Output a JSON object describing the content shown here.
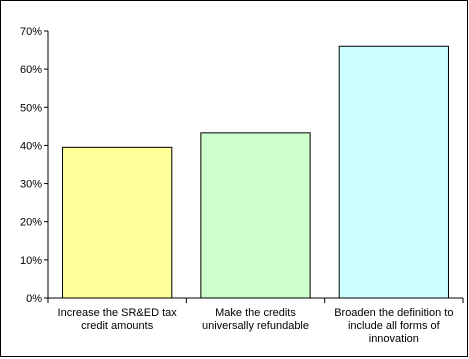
{
  "chart_data": {
    "type": "bar",
    "title": "",
    "xlabel": "",
    "ylabel": "",
    "categories": [
      [
        "Increase the SR&ED tax",
        "credit amounts"
      ],
      [
        "Make the credits",
        "universally refundable"
      ],
      [
        "Broaden the definition to",
        "include all forms of",
        "innovation"
      ]
    ],
    "values": [
      39.5,
      43.3,
      66.0
    ],
    "bar_colors": [
      "#ffff99",
      "#ccffcc",
      "#ccffff"
    ],
    "ylim": [
      0,
      70
    ],
    "y_ticks": [
      0,
      10,
      20,
      30,
      40,
      50,
      60,
      70
    ],
    "y_tick_labels": [
      "0%",
      "10%",
      "20%",
      "30%",
      "40%",
      "50%",
      "60%",
      "70%"
    ],
    "grid": false,
    "legend": "none"
  }
}
